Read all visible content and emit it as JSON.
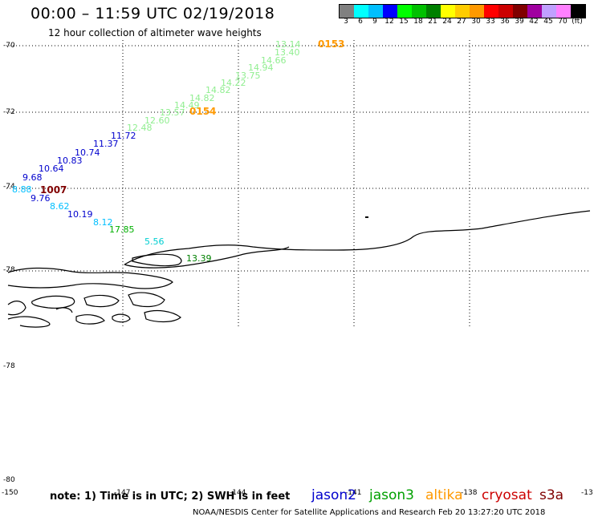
{
  "header": {
    "title": "00:00 – 11:59 UTC 02/19/2018",
    "subtitle": "12 hour collection of altimeter wave heights"
  },
  "legend": {
    "unit": "(ft)",
    "colors": [
      "#808080",
      "#00ffff",
      "#00bfff",
      "#0000ff",
      "#00ff00",
      "#00c000",
      "#008000",
      "#ffff00",
      "#ffcc00",
      "#ff9900",
      "#ff0000",
      "#cc0000",
      "#800000",
      "#a000a0",
      "#c0a0ff",
      "#ff80ff",
      "#000000"
    ],
    "labels": [
      "3",
      "6",
      "9",
      "12",
      "15",
      "18",
      "21",
      "24",
      "27",
      "30",
      "33",
      "36",
      "39",
      "42",
      "45",
      "70",
      "(ft)"
    ]
  },
  "axes": {
    "lat_labels": [
      "-70",
      "-72",
      "-74",
      "-78",
      "-78",
      "-80"
    ],
    "lon_labels": [
      "-150",
      "-147",
      "-144",
      "-141",
      "-138",
      "-13"
    ]
  },
  "observations": [
    {
      "text": "13.14",
      "color": "#90ee90"
    },
    {
      "text": "13.40",
      "color": "#90ee90"
    },
    {
      "text": "14.66",
      "color": "#90ee90"
    },
    {
      "text": "14.94",
      "color": "#90ee90"
    },
    {
      "text": "13.75",
      "color": "#90ee90"
    },
    {
      "text": "14.22",
      "color": "#90ee90"
    },
    {
      "text": "14.82",
      "color": "#90ee90"
    },
    {
      "text": "14.82",
      "color": "#90ee90"
    },
    {
      "text": "14.49",
      "color": "#90ee90"
    },
    {
      "text": "13.57",
      "color": "#90ee90"
    },
    {
      "text": "12.60",
      "color": "#90ee90"
    },
    {
      "text": "12.48",
      "color": "#90ee90"
    },
    {
      "text": "11.72",
      "color": "#0000cd"
    },
    {
      "text": "11.37",
      "color": "#0000cd"
    },
    {
      "text": "10.74",
      "color": "#0000cd"
    },
    {
      "text": "10.83",
      "color": "#0000cd"
    },
    {
      "text": "10.64",
      "color": "#0000cd"
    },
    {
      "text": "9.68",
      "color": "#0000cd"
    },
    {
      "text": "8.88",
      "color": "#00bfff"
    },
    {
      "text": "9.76",
      "color": "#0000cd"
    },
    {
      "text": "8.62",
      "color": "#00bfff"
    },
    {
      "text": "10.19",
      "color": "#0000cd"
    },
    {
      "text": "8.12",
      "color": "#00bfff"
    },
    {
      "text": "17.85",
      "color": "#00b000"
    },
    {
      "text": "5.56",
      "color": "#00ced1"
    },
    {
      "text": "13.39",
      "color": "#008000"
    }
  ],
  "time_tags": [
    {
      "text": "0153",
      "color": "#ff9900"
    },
    {
      "text": "0154",
      "color": "#ff9900"
    },
    {
      "text": "1007",
      "color": "#800000"
    }
  ],
  "footer": {
    "note": "note: 1) Time is in UTC; 2) SWH is in feet",
    "satellites": [
      {
        "name": "jason2",
        "color": "#0000cd"
      },
      {
        "name": "jason3",
        "color": "#00a000"
      },
      {
        "name": "altika",
        "color": "#ff9900"
      },
      {
        "name": "cryosat",
        "color": "#cc0000"
      },
      {
        "name": "s3a",
        "color": "#800000"
      }
    ],
    "credit": "NOAA/NESDIS Center for Satellite Applications and Research    Feb 20 13:27:20 UTC 2018"
  }
}
